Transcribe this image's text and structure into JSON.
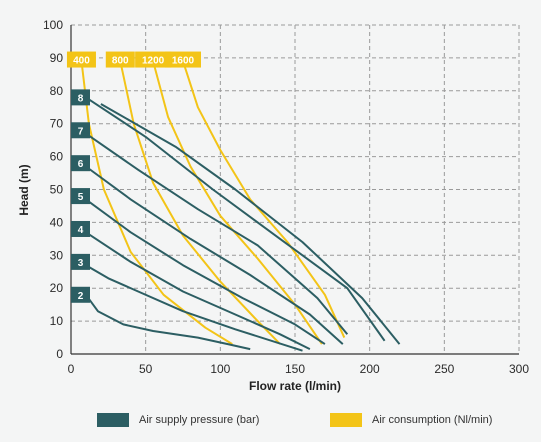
{
  "chart_data": {
    "type": "line",
    "xlabel": "Flow rate (l/min)",
    "ylabel": "Head (m)",
    "xlim": [
      0,
      300
    ],
    "ylim": [
      0,
      100
    ],
    "x_ticks": [
      0,
      50,
      100,
      150,
      200,
      250,
      300
    ],
    "y_ticks": [
      0,
      10,
      20,
      30,
      40,
      50,
      60,
      70,
      80,
      90,
      100
    ],
    "grid": "dashed",
    "pressure_series": [
      {
        "name": "2",
        "label_y": 18,
        "points": [
          [
            10,
            18
          ],
          [
            18,
            13
          ],
          [
            35,
            9
          ],
          [
            55,
            7
          ],
          [
            85,
            5
          ],
          [
            105,
            3
          ],
          [
            120,
            1.5
          ]
        ]
      },
      {
        "name": "3",
        "label_y": 28,
        "points": [
          [
            10,
            27
          ],
          [
            25,
            23
          ],
          [
            45,
            19
          ],
          [
            75,
            13
          ],
          [
            110,
            7.5
          ],
          [
            155,
            1
          ]
        ]
      },
      {
        "name": "4",
        "label_y": 38,
        "points": [
          [
            10,
            37
          ],
          [
            40,
            28
          ],
          [
            75,
            19
          ],
          [
            110,
            12
          ],
          [
            140,
            6
          ],
          [
            160,
            1.5
          ]
        ]
      },
      {
        "name": "5",
        "label_y": 48,
        "points": [
          [
            10,
            47
          ],
          [
            40,
            37
          ],
          [
            75,
            27
          ],
          [
            115,
            17
          ],
          [
            150,
            9
          ],
          [
            170,
            3
          ]
        ]
      },
      {
        "name": "6",
        "label_y": 58,
        "points": [
          [
            10,
            57
          ],
          [
            40,
            47
          ],
          [
            80,
            35
          ],
          [
            120,
            24
          ],
          [
            160,
            12
          ],
          [
            182,
            3
          ]
        ]
      },
      {
        "name": "7",
        "label_y": 68,
        "points": [
          [
            10,
            67
          ],
          [
            45,
            56
          ],
          [
            85,
            44
          ],
          [
            125,
            33
          ],
          [
            165,
            17
          ],
          [
            185,
            6
          ]
        ]
      },
      {
        "name": "8",
        "label_y": 78,
        "points": [
          [
            10,
            78
          ],
          [
            50,
            66
          ],
          [
            95,
            50
          ],
          [
            140,
            35
          ],
          [
            185,
            20
          ],
          [
            210,
            4
          ]
        ]
      },
      {
        "name": "8",
        "label_y": null,
        "points": [
          [
            20,
            76
          ],
          [
            70,
            63
          ],
          [
            110,
            50
          ],
          [
            155,
            34
          ],
          [
            195,
            17
          ],
          [
            220,
            3
          ]
        ]
      }
    ],
    "consumption_series": [
      {
        "name": "400",
        "points": [
          [
            7,
            89
          ],
          [
            12,
            70
          ],
          [
            22,
            50
          ],
          [
            40,
            31
          ],
          [
            62,
            18
          ],
          [
            90,
            8
          ],
          [
            108,
            3
          ]
        ]
      },
      {
        "name": "800",
        "points": [
          [
            33,
            89
          ],
          [
            42,
            70
          ],
          [
            55,
            52
          ],
          [
            75,
            36
          ],
          [
            100,
            22
          ],
          [
            125,
            10
          ],
          [
            140,
            3
          ]
        ]
      },
      {
        "name": "1200",
        "points": [
          [
            55,
            89
          ],
          [
            65,
            72
          ],
          [
            80,
            57
          ],
          [
            100,
            42
          ],
          [
            125,
            29
          ],
          [
            150,
            15
          ],
          [
            168,
            3
          ]
        ]
      },
      {
        "name": "1600",
        "points": [
          [
            75,
            89
          ],
          [
            85,
            75
          ],
          [
            100,
            62
          ],
          [
            120,
            47
          ],
          [
            145,
            34
          ],
          [
            170,
            18
          ],
          [
            183,
            5
          ]
        ]
      }
    ],
    "legend": [
      {
        "label": "Air supply pressure (bar)",
        "color": "#2c5e63"
      },
      {
        "label": "Air consumption (Nl/min)",
        "color": "#f3c417"
      }
    ]
  },
  "colors": {
    "pressure": "#2c5e63",
    "consumption": "#f3c417",
    "grid": "#9a9a9a",
    "background": "#f4f5f5"
  }
}
